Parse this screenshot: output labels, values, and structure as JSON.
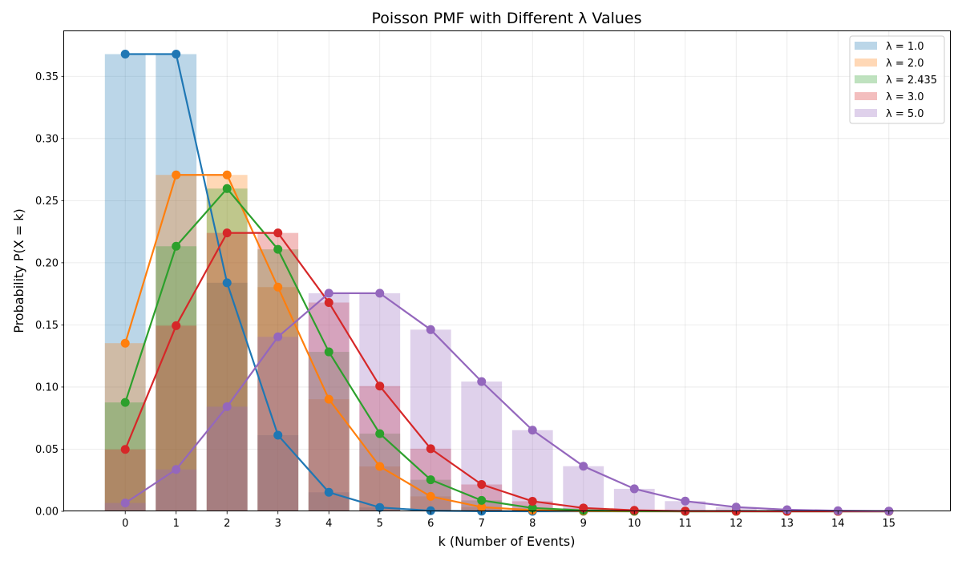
{
  "chart_data": {
    "type": "bar",
    "title": "Poisson PMF with Different λ Values",
    "xlabel": "k (Number of Events)",
    "ylabel": "Probability P(X = k)",
    "x": [
      0,
      1,
      2,
      3,
      4,
      5,
      6,
      7,
      8,
      9,
      10,
      11,
      12,
      13,
      14,
      15
    ],
    "xlim": [
      -1.2,
      16.2
    ],
    "ylim": [
      0,
      0.3863
    ],
    "yticks": [
      0.0,
      0.05,
      0.1,
      0.15,
      0.2,
      0.25,
      0.3,
      0.35
    ],
    "grid": true,
    "legend_position": "top-right",
    "bars_and_lines_overlaid": true,
    "series": [
      {
        "name": "λ = 1.0",
        "color": "#1f77b4",
        "values": [
          0.3679,
          0.3679,
          0.1839,
          0.0613,
          0.0153,
          0.0031,
          0.0005,
          0.0001,
          0.0,
          0.0,
          0.0,
          0.0,
          0.0,
          0.0,
          0.0,
          0.0
        ]
      },
      {
        "name": "λ = 2.0",
        "color": "#ff7f0e",
        "values": [
          0.1353,
          0.2707,
          0.2707,
          0.1804,
          0.0902,
          0.0361,
          0.012,
          0.0034,
          0.0009,
          0.0002,
          0.0,
          0.0,
          0.0,
          0.0,
          0.0,
          0.0
        ]
      },
      {
        "name": "λ = 2.435",
        "color": "#2ca02c",
        "values": [
          0.0876,
          0.2133,
          0.2597,
          0.2108,
          0.1283,
          0.0625,
          0.0254,
          0.0088,
          0.0027,
          0.0007,
          0.0002,
          0.0,
          0.0,
          0.0,
          0.0,
          0.0
        ]
      },
      {
        "name": "λ = 3.0",
        "color": "#d62728",
        "values": [
          0.0498,
          0.1494,
          0.224,
          0.224,
          0.168,
          0.1008,
          0.0504,
          0.0216,
          0.0081,
          0.0027,
          0.0008,
          0.0002,
          0.0001,
          0.0,
          0.0,
          0.0
        ]
      },
      {
        "name": "λ = 5.0",
        "color": "#9467bd",
        "values": [
          0.0067,
          0.0337,
          0.0842,
          0.1404,
          0.1755,
          0.1755,
          0.1462,
          0.1044,
          0.0653,
          0.0363,
          0.0181,
          0.0082,
          0.0034,
          0.0013,
          0.0005,
          0.0002
        ]
      }
    ]
  }
}
